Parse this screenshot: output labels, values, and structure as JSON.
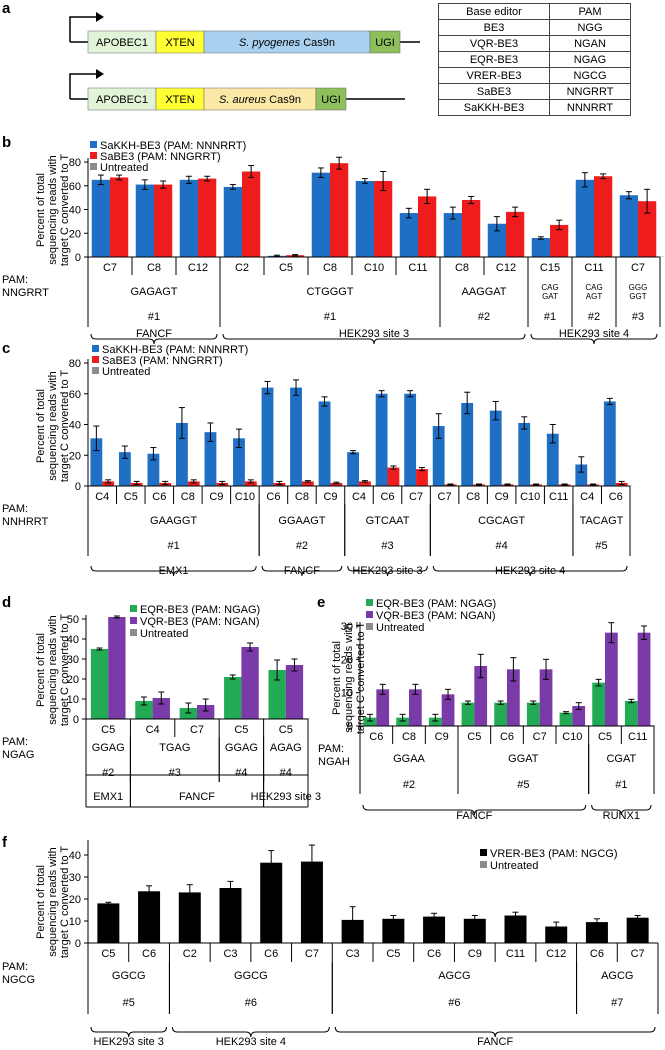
{
  "panel_letters": {
    "a": "a",
    "b": "b",
    "c": "c",
    "d": "d",
    "e": "e",
    "f": "f"
  },
  "constructs": [
    {
      "segments": [
        {
          "label": "APOBEC1",
          "color": "#e2f4d8",
          "italic": false
        },
        {
          "label": "XTEN",
          "color": "#ffff33",
          "italic": false
        },
        {
          "label_italic": "S. pyogenes",
          "label_rest": " Cas9n",
          "color": "#a9d0ee"
        },
        {
          "label": "UGI",
          "color": "#8dbf5a",
          "italic": false
        }
      ]
    },
    {
      "segments": [
        {
          "label": "APOBEC1",
          "color": "#e2f4d8",
          "italic": false
        },
        {
          "label": "XTEN",
          "color": "#ffff33",
          "italic": false
        },
        {
          "label_italic": "S. aureus",
          "label_rest": " Cas9n",
          "color": "#fbe7a6"
        },
        {
          "label": "UGI",
          "color": "#8dbf5a",
          "italic": false
        }
      ]
    }
  ],
  "pam_table": {
    "headers": [
      "Base editor",
      "PAM"
    ],
    "rows": [
      [
        "BE3",
        "NGG"
      ],
      [
        "VQR-BE3",
        "NGAN"
      ],
      [
        "EQR-BE3",
        "NGAG"
      ],
      [
        "VRER-BE3",
        "NGCG"
      ],
      [
        "SaBE3",
        "NNGRRT"
      ],
      [
        "SaKKH-BE3",
        "NNNRRT"
      ]
    ]
  },
  "ylabel_lines": [
    "Percent of total",
    "sequencing reads with",
    "target C converted to T"
  ],
  "colors": {
    "sakkh": "#1f6fc4",
    "sabe3": "#ee1c1c",
    "untreated": "#8c8c8c",
    "eqr": "#22aa55",
    "vqr": "#7a3aa8",
    "vrer": "#000000"
  },
  "chart_data": [
    {
      "panel": "b",
      "type": "bar",
      "ylim": [
        0,
        80
      ],
      "yticks": [
        0,
        20,
        40,
        60,
        80
      ],
      "legend": [
        "SaKKH-BE3 (PAM: NNNRRT)",
        "SaBE3 (PAM: NNGRRT)",
        "Untreated"
      ],
      "pam_label": [
        "PAM:",
        "NNGRRT"
      ],
      "categories": [
        "C7",
        "C8",
        "C12",
        "C2",
        "C5",
        "C8",
        "C10",
        "C11",
        "C8",
        "C12",
        "C15",
        "C11",
        "C7"
      ],
      "series": [
        {
          "name": "SaKKH-BE3 (PAM: NNNRRT)",
          "values": [
            65,
            61,
            65,
            59,
            1,
            71,
            64,
            37,
            37,
            28,
            16,
            65,
            52
          ],
          "errors": [
            4,
            4,
            3,
            2,
            0.5,
            4,
            2,
            4,
            5,
            6,
            1,
            6,
            3
          ]
        },
        {
          "name": "SaBE3 (PAM: NNGRRT)",
          "values": [
            67,
            61,
            66,
            72,
            1.5,
            79,
            64,
            51,
            48,
            38,
            27,
            68,
            47
          ],
          "errors": [
            2,
            3,
            2,
            5,
            0.5,
            5,
            8,
            6,
            3,
            4,
            4,
            2,
            10
          ]
        },
        {
          "name": "Untreated",
          "values": [
            0.3,
            0.3,
            0.3,
            0.3,
            0.3,
            0.3,
            0.3,
            0.3,
            0.3,
            0.3,
            0.3,
            0.3,
            0.3
          ],
          "errors": [
            0,
            0,
            0,
            0,
            0,
            0,
            0,
            0,
            0,
            0,
            0,
            0,
            0
          ]
        }
      ],
      "protospacers": [
        {
          "label": "GAGAGT",
          "site": "#1",
          "from": 0,
          "to": 2
        },
        {
          "label": "CTGGGT",
          "site": "#1",
          "from": 3,
          "to": 7
        },
        {
          "label": "AAGGAT",
          "site": "#2",
          "from": 8,
          "to": 9
        },
        {
          "label": "CAG GAT",
          "site": "#1",
          "from": 10,
          "to": 10,
          "small": true
        },
        {
          "label": "CAG AGT",
          "site": "#2",
          "from": 11,
          "to": 11,
          "small": true
        },
        {
          "label": "GGG GGT",
          "site": "#3",
          "from": 12,
          "to": 12,
          "small": true
        }
      ],
      "genes": [
        {
          "label": "FANCF",
          "from": 0,
          "to": 2
        },
        {
          "label": "HEK293 site 3",
          "from": 3,
          "to": 9
        },
        {
          "label": "HEK293 site 4",
          "from": 10,
          "to": 12
        }
      ]
    },
    {
      "panel": "c",
      "type": "bar",
      "ylim": [
        0,
        80
      ],
      "yticks": [
        0,
        20,
        40,
        60,
        80
      ],
      "legend": [
        "SaKKH-BE3 (PAM: NNNRRT)",
        "SaBE3 (PAM: NNGRRT)",
        "Untreated"
      ],
      "pam_label": [
        "PAM:",
        "NNHRRT"
      ],
      "categories": [
        "C4",
        "C5",
        "C6",
        "C8",
        "C9",
        "C10",
        "C6",
        "C8",
        "C9",
        "C4",
        "C6",
        "C7",
        "C7",
        "C8",
        "C9",
        "C10",
        "C11",
        "C4",
        "C6"
      ],
      "series": [
        {
          "name": "SaKKH-BE3 (PAM: NNNRRT)",
          "values": [
            31,
            22,
            21,
            41,
            35,
            31,
            64,
            64,
            55,
            22,
            60,
            60,
            39,
            54,
            49,
            41,
            34,
            14,
            55
          ],
          "errors": [
            8,
            4,
            4,
            10,
            6,
            6,
            4,
            5,
            3,
            1,
            2,
            2,
            8,
            7,
            6,
            4,
            6,
            5,
            2
          ]
        },
        {
          "name": "SaBE3 (PAM: NNGRRT)",
          "values": [
            3,
            2,
            2,
            3,
            2,
            3,
            2,
            3,
            2,
            3,
            12,
            11,
            1,
            1,
            1,
            1,
            1,
            1,
            2
          ],
          "errors": [
            1,
            1,
            1,
            1,
            1,
            1,
            1,
            0.5,
            0.5,
            0.5,
            1,
            1,
            0.3,
            0.3,
            0.3,
            0.3,
            0.3,
            0.3,
            1
          ]
        },
        {
          "name": "Untreated",
          "values": [
            0.3,
            0.3,
            0.3,
            0.3,
            0.3,
            0.3,
            0.3,
            0.3,
            0.3,
            0.3,
            0.3,
            0.3,
            0.3,
            0.3,
            0.3,
            0.3,
            0.3,
            0.3,
            0.3
          ],
          "errors": [
            0,
            0,
            0,
            0,
            0,
            0,
            0,
            0,
            0,
            0,
            0,
            0,
            0,
            0,
            0,
            0,
            0,
            0,
            0
          ]
        }
      ],
      "protospacers": [
        {
          "label": "GAAGGT",
          "site": "#1",
          "from": 0,
          "to": 5
        },
        {
          "label": "GGAAGT",
          "site": "#2",
          "from": 6,
          "to": 8
        },
        {
          "label": "GTCAAT",
          "site": "#3",
          "from": 9,
          "to": 11
        },
        {
          "label": "CGCAGT",
          "site": "#4",
          "from": 12,
          "to": 16
        },
        {
          "label": "TACAGT",
          "site": "#5",
          "from": 17,
          "to": 18
        }
      ],
      "genes": [
        {
          "label": "EMX1",
          "from": 0,
          "to": 5
        },
        {
          "label": "FANCF",
          "from": 6,
          "to": 8
        },
        {
          "label": "HEK293 site 3",
          "from": 9,
          "to": 11
        },
        {
          "label": "HEK293 site 4",
          "from": 12,
          "to": 18
        }
      ]
    },
    {
      "panel": "d",
      "type": "bar",
      "ylim": [
        0,
        50
      ],
      "yticks": [
        0,
        10,
        20,
        30,
        40,
        50
      ],
      "legend": [
        "EQR-BE3 (PAM: NGAG)",
        "VQR-BE3 (PAM: NGAN)",
        "Untreated"
      ],
      "pam_label": [
        "PAM:",
        "NGAG"
      ],
      "categories": [
        "C5",
        "C4",
        "C7",
        "C5",
        "C5"
      ],
      "series": [
        {
          "name": "EQR-BE3 (PAM: NGAG)",
          "values": [
            35,
            9,
            5.5,
            21,
            24.5
          ],
          "errors": [
            0.5,
            2,
            2.5,
            1,
            5
          ]
        },
        {
          "name": "VQR-BE3 (PAM: NGAN)",
          "values": [
            51,
            10.5,
            7,
            36,
            27
          ],
          "errors": [
            0.5,
            3,
            3,
            2,
            3
          ]
        },
        {
          "name": "Untreated",
          "values": [
            0.3,
            0.3,
            0.3,
            0.3,
            0.3
          ],
          "errors": [
            0,
            0,
            0,
            0,
            0
          ]
        }
      ],
      "protospacers": [
        {
          "label": "GGAG",
          "site": "#2",
          "from": 0,
          "to": 0
        },
        {
          "label": "TGAG",
          "site": "#3",
          "from": 1,
          "to": 2
        },
        {
          "label": "GGAG",
          "site": "#4",
          "from": 3,
          "to": 3
        },
        {
          "label": "AGAG",
          "site": "#4",
          "from": 4,
          "to": 4
        }
      ],
      "genes": [
        {
          "label": "EMX1",
          "from": 0,
          "to": 0
        },
        {
          "label": "FANCF",
          "from": 1,
          "to": 3
        },
        {
          "label": "HEK293 site 3",
          "from": 4,
          "to": 4
        }
      ]
    },
    {
      "panel": "e",
      "type": "bar",
      "ylim": [
        0,
        30
      ],
      "yticks": [
        0,
        10,
        20,
        30
      ],
      "legend": [
        "EQR-BE3 (PAM: NGAG)",
        "VQR-BE3 (PAM: NGAN)",
        "Untreated"
      ],
      "pam_label": [
        "PAM:",
        "NGAH"
      ],
      "categories": [
        "C6",
        "C8",
        "C9",
        "C5",
        "C6",
        "C7",
        "C10",
        "C5",
        "C11"
      ],
      "series": [
        {
          "name": "EQR-BE3 (PAM: NGAG)",
          "values": [
            2.5,
            2.5,
            2.5,
            7,
            7,
            7,
            4,
            13,
            7.5
          ],
          "errors": [
            1,
            1,
            1,
            0.5,
            0.5,
            0.5,
            0.3,
            1,
            0.5
          ]
        },
        {
          "name": "VQR-BE3 (PAM: NGAN)",
          "values": [
            11,
            11,
            9.5,
            18,
            17,
            17,
            6,
            28,
            28
          ],
          "errors": [
            1.5,
            1.5,
            1.5,
            3.5,
            3.5,
            3,
            1,
            3,
            2
          ]
        },
        {
          "name": "Untreated",
          "values": [
            0.2,
            0.2,
            0.2,
            0.2,
            0.2,
            0.2,
            0.2,
            0.2,
            0.2
          ],
          "errors": [
            0,
            0,
            0,
            0,
            0,
            0,
            0,
            0,
            0
          ]
        }
      ],
      "protospacers": [
        {
          "label": "GGAA",
          "site": "#2",
          "from": 0,
          "to": 2
        },
        {
          "label": "GGAT",
          "site": "#5",
          "from": 3,
          "to": 6
        },
        {
          "label": "CGAT",
          "site": "#1",
          "from": 7,
          "to": 8
        }
      ],
      "genes": [
        {
          "label": "FANCF",
          "from": 0,
          "to": 6
        },
        {
          "label": "RUNX1",
          "from": 7,
          "to": 8
        }
      ]
    },
    {
      "panel": "f",
      "type": "bar",
      "ylim": [
        0,
        45
      ],
      "yticks": [
        0,
        10,
        20,
        30,
        40
      ],
      "legend": [
        "VRER-BE3 (PAM: NGCG)",
        "Untreated"
      ],
      "pam_label": [
        "PAM:",
        "NGCG"
      ],
      "categories": [
        "C5",
        "C6",
        "C2",
        "C3",
        "C6",
        "C7",
        "C3",
        "C5",
        "C6",
        "C9",
        "C11",
        "C12",
        "C6",
        "C7"
      ],
      "series": [
        {
          "name": "VRER-BE3 (PAM: NGCG)",
          "values": [
            18,
            23.5,
            23,
            25,
            36.5,
            37,
            10.5,
            11,
            12,
            11,
            12.5,
            7.5,
            9.5,
            11.5
          ],
          "errors": [
            0.5,
            2.5,
            3.5,
            3,
            5.5,
            7.5,
            6,
            1.5,
            1.5,
            1.5,
            1.5,
            2,
            1.5,
            1
          ]
        },
        {
          "name": "Untreated",
          "values": [
            0.2,
            0.2,
            0.2,
            0.2,
            0.2,
            0.2,
            0.2,
            0.2,
            0.2,
            0.2,
            0.2,
            0.2,
            0.2,
            0.2
          ],
          "errors": [
            0,
            0,
            0,
            0,
            0,
            0,
            0,
            0,
            0,
            0,
            0,
            0,
            0,
            0
          ]
        }
      ],
      "protospacers": [
        {
          "label": "GGCG",
          "site": "#5",
          "from": 0,
          "to": 1
        },
        {
          "label": "GGCG",
          "site": "#6",
          "from": 2,
          "to": 5
        },
        {
          "label": "AGCG",
          "site": "#6",
          "from": 6,
          "to": 11
        },
        {
          "label": "AGCG",
          "site": "#7",
          "from": 12,
          "to": 13
        }
      ],
      "genes": [
        {
          "label": "HEK293 site 3",
          "from": 0,
          "to": 1
        },
        {
          "label": "HEK293 site 4",
          "from": 2,
          "to": 5
        },
        {
          "label": "FANCF",
          "from": 6,
          "to": 13
        }
      ]
    }
  ]
}
